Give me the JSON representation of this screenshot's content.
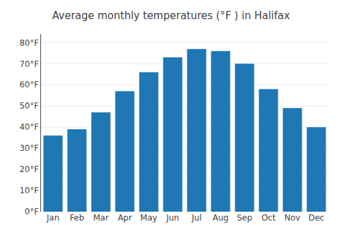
{
  "chart_data": {
    "type": "bar",
    "title": "Average monthly temperatures (°F ) in Halifax",
    "categories": [
      "Jan",
      "Feb",
      "Mar",
      "Apr",
      "May",
      "Jun",
      "Jul",
      "Aug",
      "Sep",
      "Oct",
      "Nov",
      "Dec"
    ],
    "values": [
      36,
      39,
      47,
      57,
      66,
      73,
      77,
      76,
      70,
      58,
      49,
      40
    ],
    "ylim": [
      0,
      84
    ],
    "yticks": [
      {
        "value": 0,
        "label": "0°F"
      },
      {
        "value": 10,
        "label": "10°F"
      },
      {
        "value": 20,
        "label": "20°F"
      },
      {
        "value": 30,
        "label": "30°F"
      },
      {
        "value": 40,
        "label": "40°F"
      },
      {
        "value": 50,
        "label": "50°F"
      },
      {
        "value": 60,
        "label": "60°F"
      },
      {
        "value": 70,
        "label": "70°F"
      },
      {
        "value": 80,
        "label": "80°F"
      }
    ],
    "grid": true
  }
}
